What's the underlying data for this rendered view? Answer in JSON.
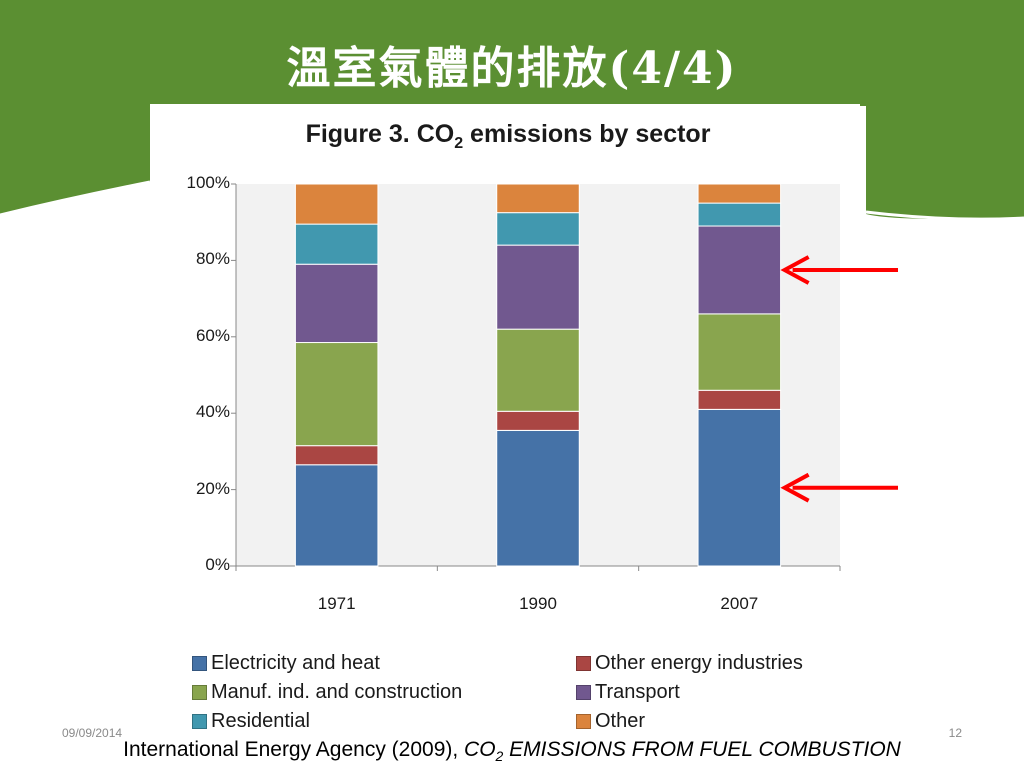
{
  "slide": {
    "title": "溫室氣體的排放(4/4)",
    "date": "09/09/2014",
    "page_number": "12"
  },
  "colors": {
    "banner": "#5b8f32",
    "plot_bg": "#f2f2f2",
    "arrow": "#ff0000"
  },
  "citation": {
    "prefix": "International Energy Agency (2009), ",
    "co": "CO",
    "sub": "2",
    "rest": " EMISSIONS FROM FUEL COMBUSTION"
  },
  "chart_data": {
    "type": "bar",
    "stacked": true,
    "title_main": "Figure 3. CO",
    "title_sub": "2",
    "title_rest": " emissions by sector",
    "categories": [
      "1971",
      "1990",
      "2007"
    ],
    "ylim": [
      0,
      100
    ],
    "yticks": [
      "0%",
      "20%",
      "40%",
      "60%",
      "80%",
      "100%"
    ],
    "ytick_values": [
      0,
      20,
      40,
      60,
      80,
      100
    ],
    "grid": false,
    "legend_position": "bottom",
    "series": [
      {
        "name": "Electricity and heat",
        "color": "#4572a7",
        "values": [
          26.5,
          35.5,
          41
        ]
      },
      {
        "name": "Other energy industries",
        "color": "#aa4643",
        "values": [
          5,
          5,
          5
        ]
      },
      {
        "name": "Manuf. ind. and construction",
        "color": "#89a54e",
        "values": [
          27,
          21.5,
          20
        ]
      },
      {
        "name": "Transport",
        "color": "#71588f",
        "values": [
          20.5,
          22,
          23
        ]
      },
      {
        "name": "Residential",
        "color": "#4198af",
        "values": [
          10.5,
          8.5,
          6
        ]
      },
      {
        "name": "Other",
        "color": "#db843d",
        "values": [
          10.5,
          7.5,
          5
        ]
      }
    ],
    "annotations": [
      {
        "type": "arrow",
        "points_to": "2007 Transport"
      },
      {
        "type": "arrow",
        "points_to": "2007 Electricity and heat"
      }
    ]
  }
}
